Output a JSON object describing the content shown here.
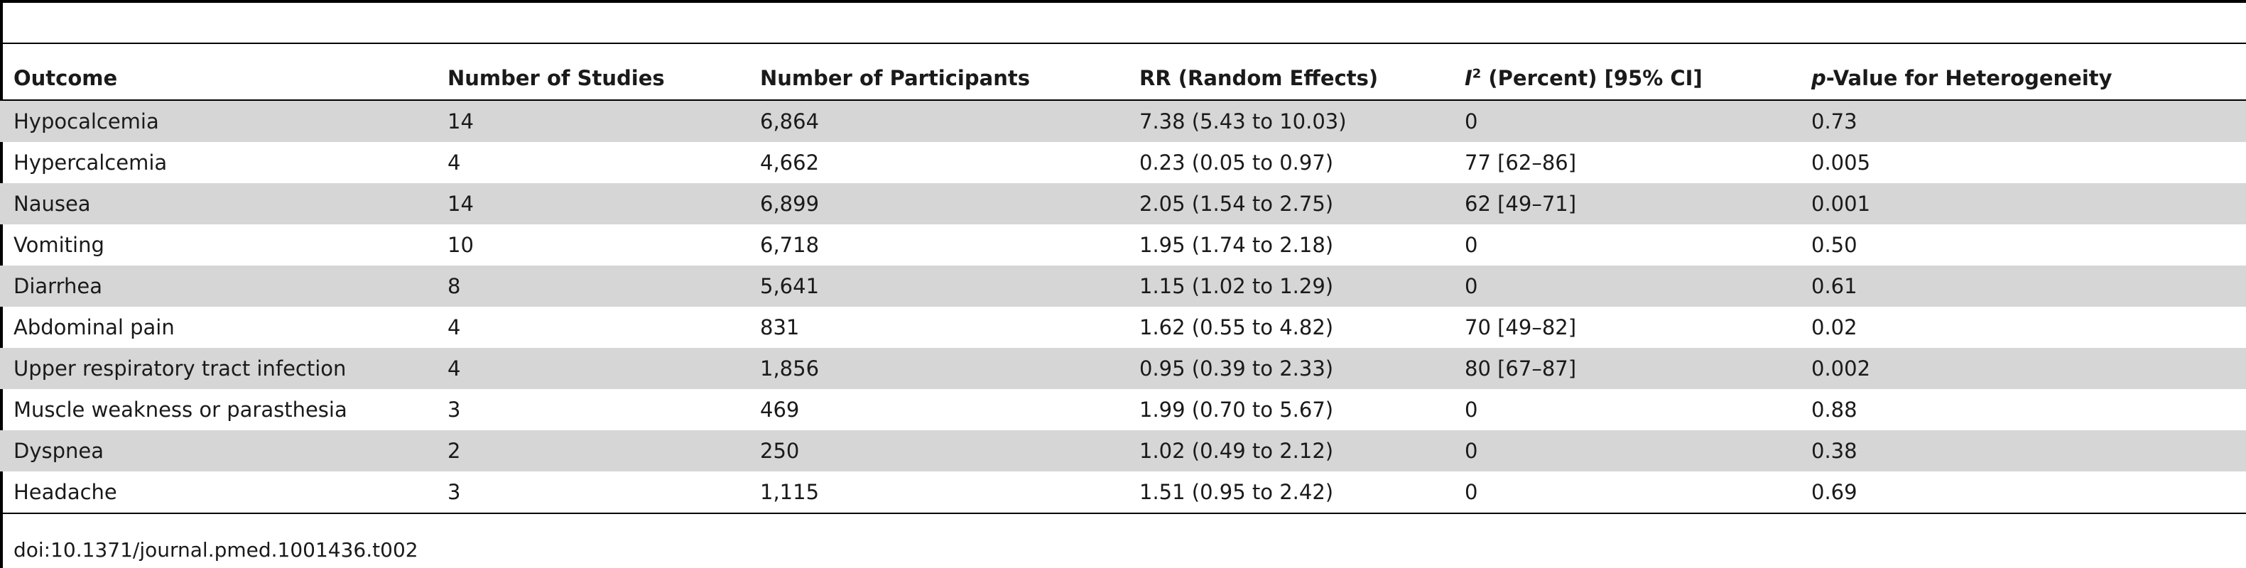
{
  "table": {
    "headers": {
      "outcome": "Outcome",
      "studies": "Number of Studies",
      "participants": "Number of Participants",
      "rr": "RR (Random Effects)",
      "i2_symbol": "I",
      "i2_superscript": "2",
      "i2_rest": " (Percent) [95% CI]",
      "p_symbol": "p",
      "p_rest": "-Value for Heterogeneity"
    },
    "rows": [
      {
        "outcome": "Hypocalcemia",
        "studies": "14",
        "participants": "6,864",
        "rr": "7.38 (5.43 to 10.03)",
        "i2": "0",
        "p": "0.73"
      },
      {
        "outcome": "Hypercalcemia",
        "studies": "4",
        "participants": "4,662",
        "rr": "0.23 (0.05 to 0.97)",
        "i2": "77 [62–86]",
        "p": "0.005"
      },
      {
        "outcome": "Nausea",
        "studies": "14",
        "participants": "6,899",
        "rr": "2.05 (1.54 to 2.75)",
        "i2": "62 [49–71]",
        "p": "0.001"
      },
      {
        "outcome": "Vomiting",
        "studies": "10",
        "participants": "6,718",
        "rr": "1.95 (1.74 to 2.18)",
        "i2": "0",
        "p": "0.50"
      },
      {
        "outcome": "Diarrhea",
        "studies": "8",
        "participants": "5,641",
        "rr": "1.15 (1.02 to 1.29)",
        "i2": "0",
        "p": "0.61"
      },
      {
        "outcome": "Abdominal pain",
        "studies": "4",
        "participants": "831",
        "rr": "1.62 (0.55 to 4.82)",
        "i2": "70 [49–82]",
        "p": "0.02"
      },
      {
        "outcome": "Upper respiratory tract infection",
        "studies": "4",
        "participants": "1,856",
        "rr": "0.95 (0.39 to 2.33)",
        "i2": "80 [67–87]",
        "p": "0.002"
      },
      {
        "outcome": "Muscle weakness or parasthesia",
        "studies": "3",
        "participants": "469",
        "rr": "1.99 (0.70 to 5.67)",
        "i2": "0",
        "p": "0.88"
      },
      {
        "outcome": "Dyspnea",
        "studies": "2",
        "participants": "250",
        "rr": "1.02 (0.49 to 2.12)",
        "i2": "0",
        "p": "0.38"
      },
      {
        "outcome": "Headache",
        "studies": "3",
        "participants": "1,115",
        "rr": "1.51 (0.95 to 2.42)",
        "i2": "0",
        "p": "0.69"
      }
    ]
  },
  "footer": {
    "doi": "doi:10.1371/journal.pmed.1001436.t002"
  },
  "colors": {
    "row_shade": "#d6d6d6",
    "rule": "#000000"
  }
}
